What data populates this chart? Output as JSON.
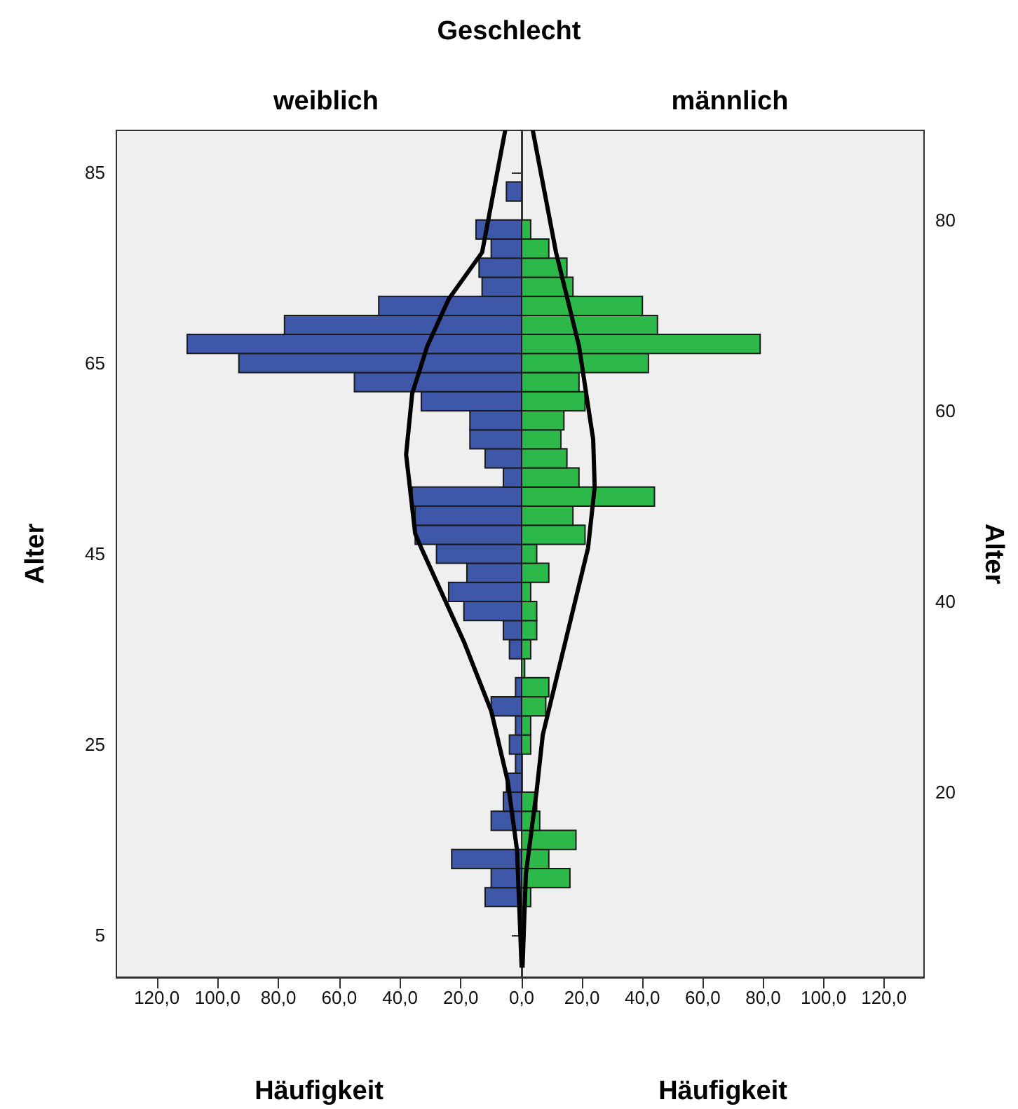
{
  "chart_data": [
    {
      "type": "histogram",
      "orientation": "horizontal",
      "title": "weiblich",
      "xlabel": "Häufigkeit",
      "ylabel": "Alter",
      "annotations": [
        "Geschlecht"
      ],
      "bins": [
        6,
        8,
        10,
        12,
        14,
        16,
        18,
        20,
        22,
        24,
        26,
        28,
        30,
        32,
        34,
        36,
        38,
        40,
        42,
        44,
        46,
        48,
        50,
        52,
        54,
        56,
        58,
        60,
        62,
        64,
        66,
        68,
        70,
        72,
        74,
        76,
        78,
        80,
        82,
        84
      ],
      "series": [
        {
          "color": "#3f57a8",
          "values": [
            0,
            12,
            10,
            23,
            null,
            10,
            6,
            5,
            2,
            4,
            2,
            10,
            2,
            0,
            4,
            6,
            19,
            24,
            18,
            28,
            35,
            35,
            36,
            6,
            12,
            17,
            17,
            33,
            55,
            93,
            110,
            78,
            47,
            13,
            14,
            10,
            15,
            0,
            5
          ]
        },
        {
          "type": "line",
          "color": "#000000",
          "x": [
            1.6,
            13.9,
            21.2,
            28.5,
            35.8,
            45.6,
            47.1,
            55.4,
            61.8,
            66.8,
            71.7,
            76.6,
            89.4
          ],
          "values": [
            0,
            1.5,
            4.6,
            10,
            19,
            33,
            35,
            38,
            36,
            31,
            24,
            13,
            5.4
          ]
        }
      ],
      "xlim": [
        133.3,
        0
      ],
      "xticks": [
        {
          "value": 0,
          "label": "0,0"
        },
        {
          "value": 20,
          "label": "20,0"
        },
        {
          "value": 40,
          "label": "40,0"
        },
        {
          "value": 60,
          "label": "60,0"
        },
        {
          "value": 80,
          "label": "80,0"
        },
        {
          "value": 100,
          "label": "100,0"
        },
        {
          "value": 120,
          "label": "120,0"
        }
      ],
      "ylim": [
        0.6,
        89.4
      ],
      "yticks": [
        5,
        25,
        45,
        65,
        85
      ],
      "grid": false
    },
    {
      "type": "histogram",
      "orientation": "horizontal",
      "title": "männlich",
      "xlabel": "Häufigkeit",
      "ylabel": "Alter",
      "bins": [
        6,
        8,
        10,
        12,
        14,
        16,
        18,
        20,
        22,
        24,
        26,
        28,
        30,
        32,
        34,
        36,
        38,
        40,
        42,
        44,
        46,
        48,
        50,
        52,
        54,
        56,
        58,
        60,
        62,
        64,
        66,
        68,
        70,
        72,
        74,
        76,
        78,
        80,
        82,
        84
      ],
      "series": [
        {
          "color": "#2db84a",
          "values": [
            null,
            3,
            16,
            9,
            18,
            6,
            5,
            0,
            0,
            3,
            3,
            8,
            9,
            1,
            3,
            5,
            5,
            3,
            9,
            5,
            21,
            17,
            44,
            19,
            15,
            13,
            14,
            21,
            19,
            42,
            79,
            45,
            40,
            17,
            15,
            9,
            3,
            0,
            0
          ]
        },
        {
          "type": "line",
          "color": "#000000",
          "x": [
            1.6,
            11.4,
            20.2,
            26,
            35.8,
            45.6,
            52,
            57,
            66.8,
            76.6,
            89.4
          ],
          "values": [
            0.3,
            1.4,
            5,
            7,
            14.5,
            22,
            24.2,
            23.7,
            19,
            11.4,
            3.7
          ]
        }
      ],
      "xlim": [
        0,
        133.3
      ],
      "xticks": [
        {
          "value": 0,
          "label": null
        },
        {
          "value": 20,
          "label": "20,0"
        },
        {
          "value": 40,
          "label": "40,0"
        },
        {
          "value": 60,
          "label": "60,0"
        },
        {
          "value": 80,
          "label": "80,0"
        },
        {
          "value": 100,
          "label": "100,0"
        },
        {
          "value": 120,
          "label": "120,0"
        }
      ],
      "ylim": [
        0.6,
        89.4
      ],
      "yticks": [
        20,
        40,
        60,
        80
      ],
      "grid": false
    }
  ]
}
